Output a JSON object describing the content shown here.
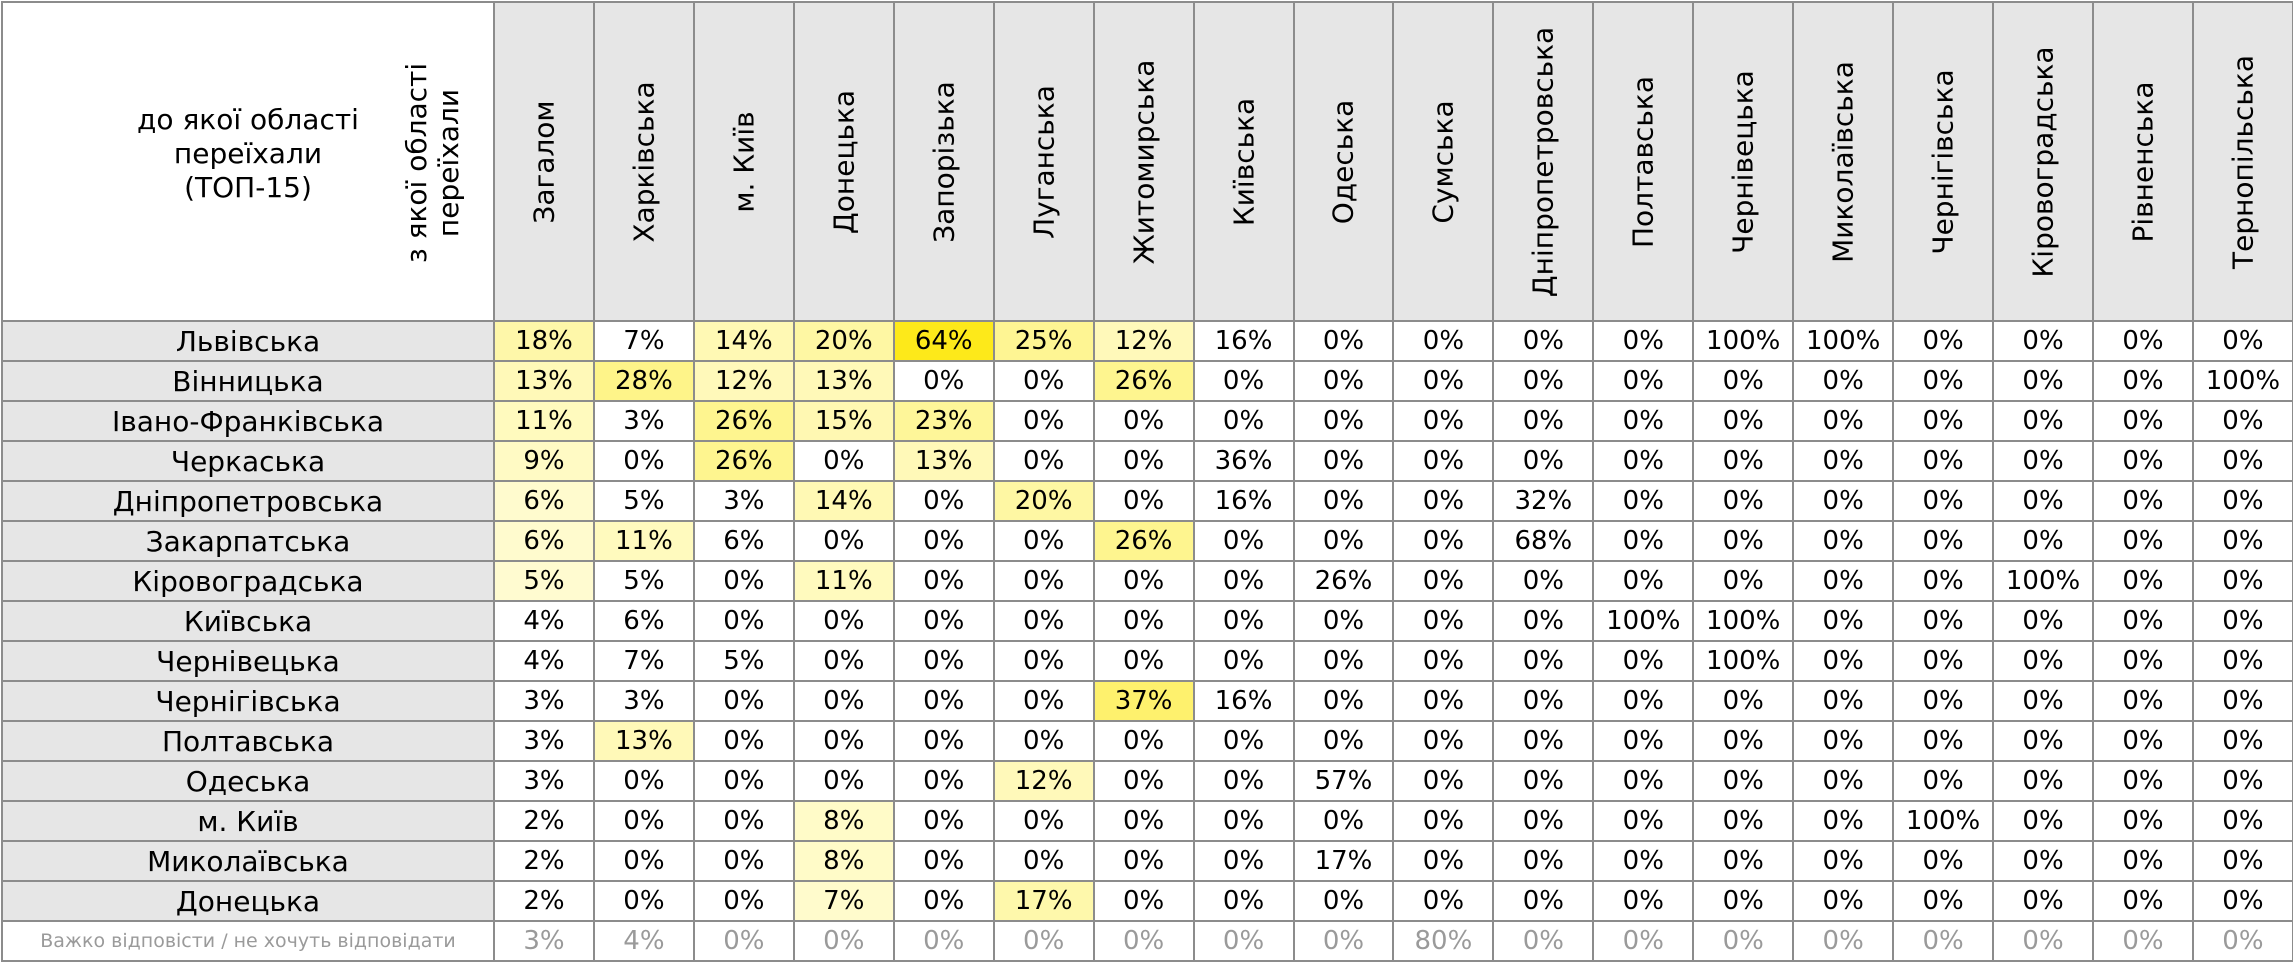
{
  "corner": {
    "to_label": "до якої області\nпереїхали\n(ТОП-15)",
    "from_label": "з якої області\nпереїхали"
  },
  "colors": {
    "header_bg": "#e6e6e6",
    "border": "#8c8c8c",
    "heat_low": "#fffde0",
    "heat_high": "#fde91a"
  },
  "columns": [
    "Загалом",
    "Харківська",
    "м. Київ",
    "Донецька",
    "Запорізька",
    "Луганська",
    "Житомирська",
    "Київська",
    "Одеська",
    "Сумська",
    "Дніпропетровська",
    "Полтавська",
    "Чернівецька",
    "Миколаївська",
    "Чернігівська",
    "Кіровоградська",
    "Рівненська",
    "Тернопільська"
  ],
  "rows": [
    {
      "label": "Львівська",
      "values": [
        "18%",
        "7%",
        "14%",
        "20%",
        "64%",
        "25%",
        "12%",
        "16%",
        "0%",
        "0%",
        "0%",
        "0%",
        "100%",
        "100%",
        "0%",
        "0%",
        "0%",
        "0%"
      ],
      "heat": [
        0.28,
        0,
        0.22,
        0.31,
        1,
        0.39,
        0.19,
        0,
        0,
        0,
        0,
        0,
        0,
        0,
        0,
        0,
        0,
        0
      ]
    },
    {
      "label": "Вінницька",
      "values": [
        "13%",
        "28%",
        "12%",
        "13%",
        "0%",
        "0%",
        "26%",
        "0%",
        "0%",
        "0%",
        "0%",
        "0%",
        "0%",
        "0%",
        "0%",
        "0%",
        "0%",
        "100%"
      ],
      "heat": [
        0.2,
        0.44,
        0.19,
        0.2,
        0,
        0,
        0.41,
        0,
        0,
        0,
        0,
        0,
        0,
        0,
        0,
        0,
        0,
        0
      ]
    },
    {
      "label": "Івано-Франківська",
      "values": [
        "11%",
        "3%",
        "26%",
        "15%",
        "23%",
        "0%",
        "0%",
        "0%",
        "0%",
        "0%",
        "0%",
        "0%",
        "0%",
        "0%",
        "0%",
        "0%",
        "0%",
        "0%"
      ],
      "heat": [
        0.17,
        0,
        0.41,
        0.23,
        0.36,
        0,
        0,
        0,
        0,
        0,
        0,
        0,
        0,
        0,
        0,
        0,
        0,
        0
      ]
    },
    {
      "label": "Черкаська",
      "values": [
        "9%",
        "0%",
        "26%",
        "0%",
        "13%",
        "0%",
        "0%",
        "36%",
        "0%",
        "0%",
        "0%",
        "0%",
        "0%",
        "0%",
        "0%",
        "0%",
        "0%",
        "0%"
      ],
      "heat": [
        0.14,
        0,
        0.41,
        0,
        0.2,
        0,
        0,
        0,
        0,
        0,
        0,
        0,
        0,
        0,
        0,
        0,
        0,
        0
      ]
    },
    {
      "label": "Дніпропетровська",
      "values": [
        "6%",
        "5%",
        "3%",
        "14%",
        "0%",
        "20%",
        "0%",
        "16%",
        "0%",
        "0%",
        "32%",
        "0%",
        "0%",
        "0%",
        "0%",
        "0%",
        "0%",
        "0%"
      ],
      "heat": [
        0.09,
        0,
        0,
        0.22,
        0,
        0.31,
        0,
        0,
        0,
        0,
        0,
        0,
        0,
        0,
        0,
        0,
        0,
        0
      ]
    },
    {
      "label": "Закарпатська",
      "values": [
        "6%",
        "11%",
        "6%",
        "0%",
        "0%",
        "0%",
        "26%",
        "0%",
        "0%",
        "0%",
        "68%",
        "0%",
        "0%",
        "0%",
        "0%",
        "0%",
        "0%",
        "0%"
      ],
      "heat": [
        0.09,
        0.17,
        0,
        0,
        0,
        0,
        0.41,
        0,
        0,
        0,
        0,
        0,
        0,
        0,
        0,
        0,
        0,
        0
      ]
    },
    {
      "label": "Кіровоградська",
      "values": [
        "5%",
        "5%",
        "0%",
        "11%",
        "0%",
        "0%",
        "0%",
        "0%",
        "26%",
        "0%",
        "0%",
        "0%",
        "0%",
        "0%",
        "0%",
        "100%",
        "0%",
        "0%"
      ],
      "heat": [
        0.08,
        0,
        0,
        0.17,
        0,
        0,
        0,
        0,
        0,
        0,
        0,
        0,
        0,
        0,
        0,
        0,
        0,
        0
      ]
    },
    {
      "label": "Київська",
      "values": [
        "4%",
        "6%",
        "0%",
        "0%",
        "0%",
        "0%",
        "0%",
        "0%",
        "0%",
        "0%",
        "0%",
        "100%",
        "100%",
        "0%",
        "0%",
        "0%",
        "0%",
        "0%"
      ],
      "heat": [
        0,
        0,
        0,
        0,
        0,
        0,
        0,
        0,
        0,
        0,
        0,
        0,
        0,
        0,
        0,
        0,
        0,
        0
      ]
    },
    {
      "label": "Чернівецька",
      "values": [
        "4%",
        "7%",
        "5%",
        "0%",
        "0%",
        "0%",
        "0%",
        "0%",
        "0%",
        "0%",
        "0%",
        "0%",
        "100%",
        "0%",
        "0%",
        "0%",
        "0%",
        "0%"
      ],
      "heat": [
        0,
        0,
        0,
        0,
        0,
        0,
        0,
        0,
        0,
        0,
        0,
        0,
        0,
        0,
        0,
        0,
        0,
        0
      ]
    },
    {
      "label": "Чернігівська",
      "values": [
        "3%",
        "3%",
        "0%",
        "0%",
        "0%",
        "0%",
        "37%",
        "16%",
        "0%",
        "0%",
        "0%",
        "0%",
        "0%",
        "0%",
        "0%",
        "0%",
        "0%",
        "0%"
      ],
      "heat": [
        0,
        0,
        0,
        0,
        0,
        0,
        0.58,
        0,
        0,
        0,
        0,
        0,
        0,
        0,
        0,
        0,
        0,
        0
      ]
    },
    {
      "label": "Полтавська",
      "values": [
        "3%",
        "13%",
        "0%",
        "0%",
        "0%",
        "0%",
        "0%",
        "0%",
        "0%",
        "0%",
        "0%",
        "0%",
        "0%",
        "0%",
        "0%",
        "0%",
        "0%",
        "0%"
      ],
      "heat": [
        0,
        0.2,
        0,
        0,
        0,
        0,
        0,
        0,
        0,
        0,
        0,
        0,
        0,
        0,
        0,
        0,
        0,
        0
      ]
    },
    {
      "label": "Одеська",
      "values": [
        "3%",
        "0%",
        "0%",
        "0%",
        "0%",
        "12%",
        "0%",
        "0%",
        "57%",
        "0%",
        "0%",
        "0%",
        "0%",
        "0%",
        "0%",
        "0%",
        "0%",
        "0%"
      ],
      "heat": [
        0,
        0,
        0,
        0,
        0,
        0.19,
        0,
        0,
        0,
        0,
        0,
        0,
        0,
        0,
        0,
        0,
        0,
        0
      ]
    },
    {
      "label": "м. Київ",
      "values": [
        "2%",
        "0%",
        "0%",
        "8%",
        "0%",
        "0%",
        "0%",
        "0%",
        "0%",
        "0%",
        "0%",
        "0%",
        "0%",
        "0%",
        "100%",
        "0%",
        "0%",
        "0%"
      ],
      "heat": [
        0,
        0,
        0,
        0.12,
        0,
        0,
        0,
        0,
        0,
        0,
        0,
        0,
        0,
        0,
        0,
        0,
        0,
        0
      ]
    },
    {
      "label": "Миколаївська",
      "values": [
        "2%",
        "0%",
        "0%",
        "8%",
        "0%",
        "0%",
        "0%",
        "0%",
        "17%",
        "0%",
        "0%",
        "0%",
        "0%",
        "0%",
        "0%",
        "0%",
        "0%",
        "0%"
      ],
      "heat": [
        0,
        0,
        0,
        0.12,
        0,
        0,
        0,
        0,
        0,
        0,
        0,
        0,
        0,
        0,
        0,
        0,
        0,
        0
      ]
    },
    {
      "label": "Донецька",
      "values": [
        "2%",
        "0%",
        "0%",
        "7%",
        "0%",
        "17%",
        "0%",
        "0%",
        "0%",
        "0%",
        "0%",
        "0%",
        "0%",
        "0%",
        "0%",
        "0%",
        "0%",
        "0%"
      ],
      "heat": [
        0,
        0,
        0,
        0.1,
        0,
        0.27,
        0,
        0,
        0,
        0,
        0,
        0,
        0,
        0,
        0,
        0,
        0,
        0
      ]
    }
  ],
  "footer_row": {
    "label": "Важко відповісти / не хочуть відповідати",
    "values": [
      "3%",
      "4%",
      "0%",
      "0%",
      "0%",
      "0%",
      "0%",
      "0%",
      "0%",
      "80%",
      "0%",
      "0%",
      "0%",
      "0%",
      "0%",
      "0%",
      "0%",
      "0%"
    ]
  }
}
